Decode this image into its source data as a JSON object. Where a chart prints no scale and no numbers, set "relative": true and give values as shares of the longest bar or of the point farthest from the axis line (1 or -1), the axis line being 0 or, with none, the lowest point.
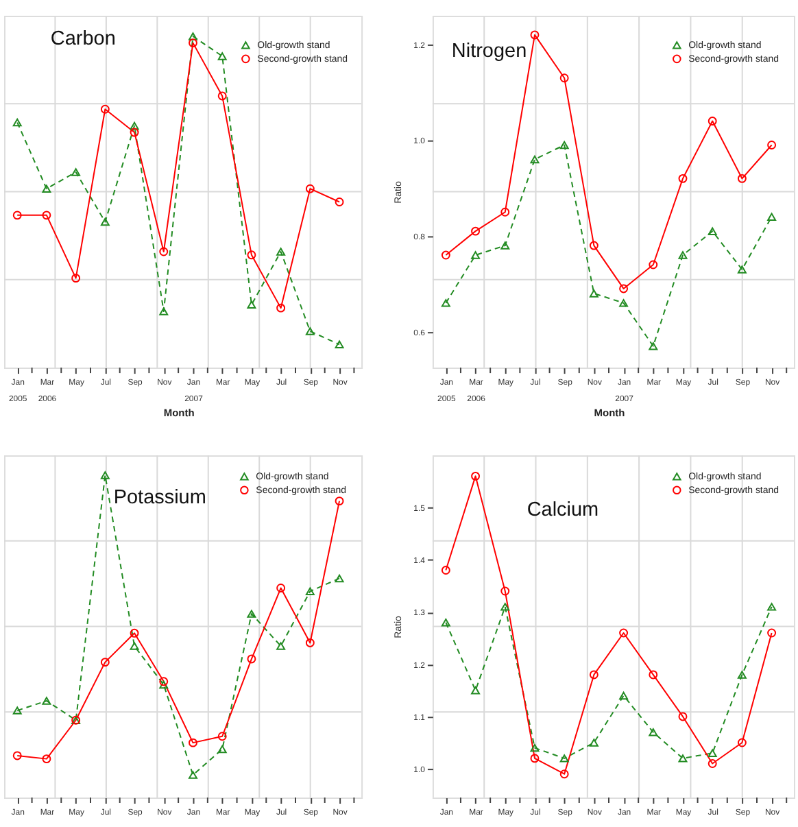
{
  "chart_data": [
    {
      "type": "line",
      "title": "Carbon",
      "relative": true,
      "xlabel": "Month",
      "categories": [
        "Jan\n2005",
        "Mar\n2006",
        "May",
        "Jul",
        "Sep",
        "Nov",
        "Jan\n2007",
        "Mar",
        "May",
        "Jul",
        "Sep",
        "Nov"
      ],
      "series": [
        {
          "name": "Old-growth stand",
          "color": "#228b22",
          "marker": "triangle",
          "line_style": "dashed",
          "values": [
            0.74,
            0.54,
            0.59,
            0.44,
            0.73,
            0.17,
            1,
            0.94,
            0.19,
            0.35,
            0.11,
            0.07
          ]
        },
        {
          "name": "Second-growth stand",
          "color": "#ff0000",
          "marker": "circle",
          "line_style": "solid",
          "values": [
            0.46,
            0.46,
            0.27,
            0.78,
            0.71,
            0.35,
            0.98,
            0.82,
            0.34,
            0.18,
            0.54,
            0.5
          ]
        }
      ],
      "legend": "top right",
      "grid": true
    },
    {
      "type": "line",
      "title": "Nitrogen",
      "xlabel": "Month",
      "ylabel": "Ratio",
      "categories": [
        "Jan\n2005",
        "Mar\n2006",
        "May",
        "Jul",
        "Sep",
        "Nov",
        "Jan\n2007",
        "Mar",
        "May",
        "Jul",
        "Sep",
        "Nov"
      ],
      "ylim": [
        0.525,
        1.26
      ],
      "yticks": [
        0.6,
        0.8,
        {
          "value": 1,
          "label": "1.0"
        },
        1.2
      ],
      "series": [
        {
          "name": "Old-growth stand",
          "color": "#228b22",
          "marker": "triangle",
          "line_style": "dashed",
          "values": [
            0.66,
            0.76,
            0.78,
            0.96,
            0.99,
            0.68,
            0.66,
            0.57,
            0.76,
            0.81,
            0.73,
            0.84
          ]
        },
        {
          "name": "Second-growth stand",
          "color": "#ff0000",
          "marker": "circle",
          "line_style": "solid",
          "values": [
            0.76,
            0.81,
            0.85,
            1.22,
            1.13,
            0.78,
            0.69,
            0.74,
            0.92,
            1.04,
            0.92,
            0.99
          ]
        }
      ],
      "legend": "top right",
      "grid": true
    },
    {
      "type": "line",
      "title": "Potassium",
      "relative": true,
      "categories": [
        "Jan",
        "Mar",
        "May",
        "Jul",
        "Sep",
        "Nov",
        "Jan",
        "Mar",
        "May",
        "Jul",
        "Sep",
        "Nov"
      ],
      "series": [
        {
          "name": "Old-growth stand",
          "color": "#228b22",
          "marker": "triangle",
          "line_style": "dashed",
          "values": [
            0.27,
            0.3,
            0.24,
            1,
            0.47,
            0.35,
            0.07,
            0.15,
            0.57,
            0.47,
            0.64,
            0.68
          ]
        },
        {
          "name": "Second-growth stand",
          "color": "#ff0000",
          "marker": "circle",
          "line_style": "solid",
          "values": [
            0.13,
            0.12,
            0.24,
            0.42,
            0.51,
            0.36,
            0.17,
            0.19,
            0.43,
            0.65,
            0.48,
            0.92
          ]
        }
      ],
      "legend": "top right",
      "grid": true
    },
    {
      "type": "line",
      "title": "Calcium",
      "ylabel": "Ratio",
      "categories": [
        "Jan",
        "Mar",
        "May",
        "Jul",
        "Sep",
        "Nov",
        "Jan",
        "Mar",
        "May",
        "Jul",
        "Sep",
        "Nov"
      ],
      "ylim": [
        0.945,
        1.6
      ],
      "yticks": [
        {
          "value": 1,
          "label": "1.0"
        },
        1.1,
        1.2,
        1.3,
        1.4,
        1.5
      ],
      "series": [
        {
          "name": "Old-growth stand",
          "color": "#228b22",
          "marker": "triangle",
          "line_style": "dashed",
          "values": [
            1.28,
            1.15,
            1.31,
            1.04,
            1.02,
            1.05,
            1.14,
            1.07,
            1.02,
            1.03,
            1.18,
            1.31
          ]
        },
        {
          "name": "Second-growth stand",
          "color": "#ff0000",
          "marker": "circle",
          "line_style": "solid",
          "values": [
            1.38,
            1.56,
            1.34,
            1.02,
            0.99,
            1.18,
            1.26,
            1.18,
            1.1,
            1.01,
            1.05,
            1.26
          ]
        }
      ],
      "legend": "top right",
      "grid": true
    }
  ]
}
